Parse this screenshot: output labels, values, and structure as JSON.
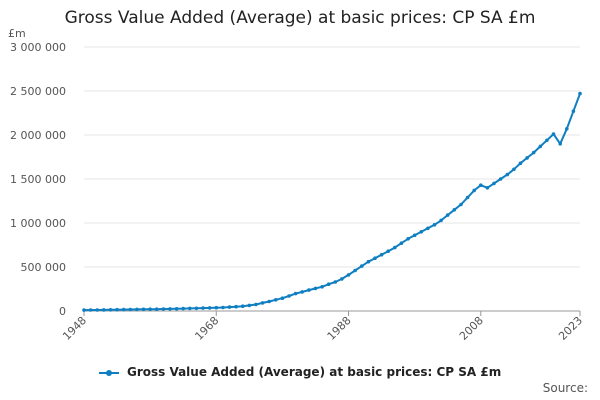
{
  "chart_data": {
    "type": "line",
    "title": "Gross Value Added (Average) at basic prices: CP SA £m",
    "ylabel": "£m",
    "xlabel": "",
    "xlim": [
      1948,
      2023
    ],
    "ylim": [
      0,
      3000000
    ],
    "y_ticks": [
      "0",
      "500 000",
      "1 000 000",
      "1 500 000",
      "2 000 000",
      "2 500 000",
      "3 000 000"
    ],
    "y_tick_values": [
      0,
      500000,
      1000000,
      1500000,
      2000000,
      2500000,
      3000000
    ],
    "x_ticks": [
      "1948",
      "1968",
      "1988",
      "2008",
      "2023"
    ],
    "x_tick_values": [
      1948,
      1968,
      1988,
      2008,
      2023
    ],
    "grid": "horizontal",
    "legend_position": "bottom",
    "series": [
      {
        "name": "Gross Value Added (Average) at basic prices: CP SA £m",
        "color": "#0f7fc2",
        "x": [
          1948,
          1949,
          1950,
          1951,
          1952,
          1953,
          1954,
          1955,
          1956,
          1957,
          1958,
          1959,
          1960,
          1961,
          1962,
          1963,
          1964,
          1965,
          1966,
          1967,
          1968,
          1969,
          1970,
          1971,
          1972,
          1973,
          1974,
          1975,
          1976,
          1977,
          1978,
          1979,
          1980,
          1981,
          1982,
          1983,
          1984,
          1985,
          1986,
          1987,
          1988,
          1989,
          1990,
          1991,
          1992,
          1993,
          1994,
          1995,
          1996,
          1997,
          1998,
          1999,
          2000,
          2001,
          2002,
          2003,
          2004,
          2005,
          2006,
          2007,
          2008,
          2009,
          2010,
          2011,
          2012,
          2013,
          2014,
          2015,
          2016,
          2017,
          2018,
          2019,
          2020,
          2021,
          2022,
          2023
        ],
        "values": [
          10000,
          11000,
          11500,
          12500,
          13500,
          14500,
          15500,
          16500,
          18000,
          19000,
          20000,
          21000,
          22500,
          24000,
          25500,
          27000,
          29000,
          31000,
          33000,
          35000,
          37000,
          40000,
          44000,
          49000,
          55000,
          64000,
          74000,
          92000,
          108000,
          127000,
          146000,
          170000,
          198000,
          217000,
          237000,
          257000,
          275000,
          305000,
          330000,
          365000,
          410000,
          460000,
          510000,
          560000,
          600000,
          640000,
          680000,
          720000,
          770000,
          820000,
          860000,
          900000,
          940000,
          980000,
          1030000,
          1090000,
          1150000,
          1210000,
          1290000,
          1370000,
          1430000,
          1400000,
          1450000,
          1500000,
          1550000,
          1610000,
          1680000,
          1740000,
          1800000,
          1870000,
          1940000,
          2010000,
          1900000,
          2070000,
          2270000,
          2470000
        ]
      }
    ]
  },
  "legend": {
    "label": "Gross Value Added (Average) at basic prices: CP SA £m"
  },
  "source_label": "Source:"
}
